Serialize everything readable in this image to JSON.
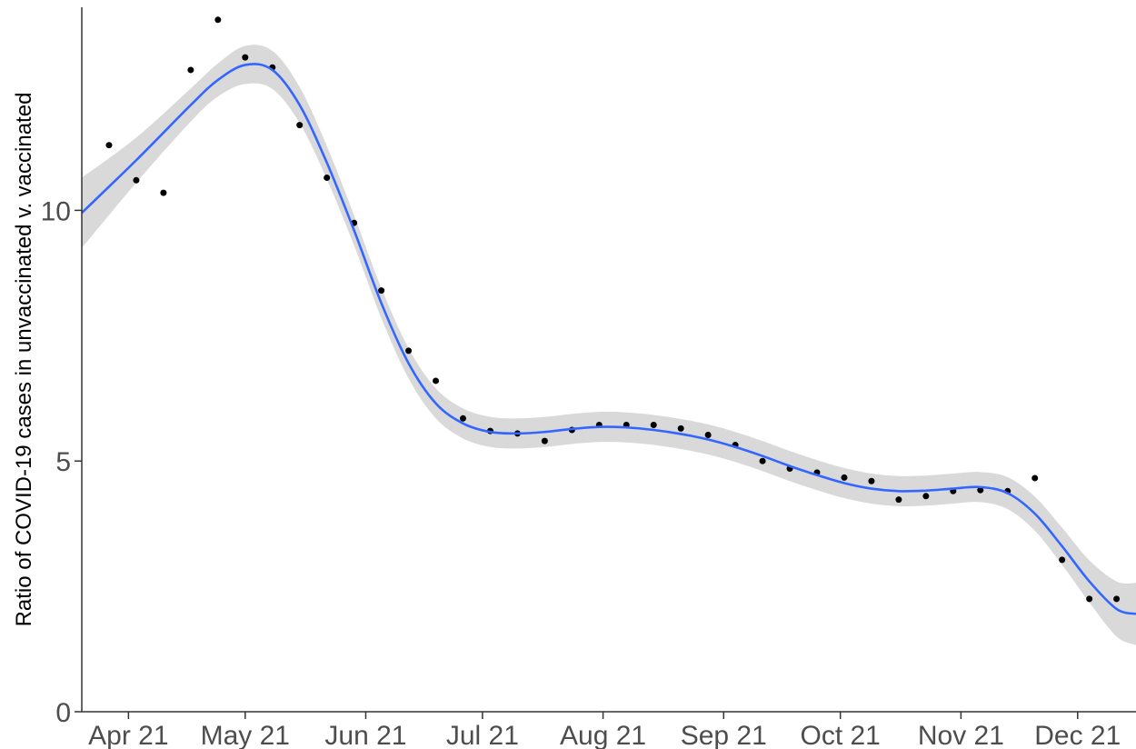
{
  "chart_data": {
    "type": "scatter",
    "title": "",
    "xlabel": "",
    "ylabel": "Ratio of COVID-19 cases in unvaccinated v. vaccinated",
    "x_ticks": [
      {
        "date": "2021-04-01",
        "label": "Apr 21"
      },
      {
        "date": "2021-05-01",
        "label": "May 21"
      },
      {
        "date": "2021-06-01",
        "label": "Jun 21"
      },
      {
        "date": "2021-07-01",
        "label": "Jul 21"
      },
      {
        "date": "2021-08-01",
        "label": "Aug 21"
      },
      {
        "date": "2021-09-01",
        "label": "Sep 21"
      },
      {
        "date": "2021-10-01",
        "label": "Oct 21"
      },
      {
        "date": "2021-11-01",
        "label": "Nov 21"
      },
      {
        "date": "2021-12-01",
        "label": "Dec 21"
      }
    ],
    "y_ticks": [
      0,
      5,
      10
    ],
    "xlim": [
      "2021-03-20",
      "2021-12-16"
    ],
    "ylim": [
      0,
      14.05
    ],
    "grid": false,
    "colors": {
      "points": "#000000",
      "smooth_line": "#3366FF",
      "confidence_band": "#D9D9D9",
      "axis": "#333333",
      "tick_labels": "#4d4d4d"
    },
    "points": [
      {
        "x": "2021-03-27",
        "y": 11.3
      },
      {
        "x": "2021-04-03",
        "y": 10.6
      },
      {
        "x": "2021-04-10",
        "y": 10.35
      },
      {
        "x": "2021-04-17",
        "y": 12.8
      },
      {
        "x": "2021-04-24",
        "y": 13.8
      },
      {
        "x": "2021-05-01",
        "y": 13.05
      },
      {
        "x": "2021-05-08",
        "y": 12.85
      },
      {
        "x": "2021-05-15",
        "y": 11.7
      },
      {
        "x": "2021-05-22",
        "y": 10.65
      },
      {
        "x": "2021-05-29",
        "y": 9.75
      },
      {
        "x": "2021-06-05",
        "y": 8.4
      },
      {
        "x": "2021-06-12",
        "y": 7.2
      },
      {
        "x": "2021-06-19",
        "y": 6.6
      },
      {
        "x": "2021-06-26",
        "y": 5.85
      },
      {
        "x": "2021-07-03",
        "y": 5.6
      },
      {
        "x": "2021-07-10",
        "y": 5.55
      },
      {
        "x": "2021-07-17",
        "y": 5.4
      },
      {
        "x": "2021-07-24",
        "y": 5.62
      },
      {
        "x": "2021-07-31",
        "y": 5.72
      },
      {
        "x": "2021-08-07",
        "y": 5.72
      },
      {
        "x": "2021-08-14",
        "y": 5.72
      },
      {
        "x": "2021-08-21",
        "y": 5.65
      },
      {
        "x": "2021-08-28",
        "y": 5.52
      },
      {
        "x": "2021-09-04",
        "y": 5.32
      },
      {
        "x": "2021-09-11",
        "y": 5.0
      },
      {
        "x": "2021-09-18",
        "y": 4.85
      },
      {
        "x": "2021-09-25",
        "y": 4.77
      },
      {
        "x": "2021-10-02",
        "y": 4.67
      },
      {
        "x": "2021-10-09",
        "y": 4.6
      },
      {
        "x": "2021-10-16",
        "y": 4.23
      },
      {
        "x": "2021-10-23",
        "y": 4.3
      },
      {
        "x": "2021-10-30",
        "y": 4.4
      },
      {
        "x": "2021-11-06",
        "y": 4.42
      },
      {
        "x": "2021-11-13",
        "y": 4.4
      },
      {
        "x": "2021-11-20",
        "y": 4.66
      },
      {
        "x": "2021-11-27",
        "y": 3.03
      },
      {
        "x": "2021-12-04",
        "y": 2.25
      },
      {
        "x": "2021-12-11",
        "y": 2.25
      }
    ],
    "smooth": {
      "method": "loess",
      "fit": [
        {
          "x": "2021-03-20",
          "y": 9.95
        },
        {
          "x": "2021-04-03",
          "y": 11.0
        },
        {
          "x": "2021-04-17",
          "y": 12.1
        },
        {
          "x": "2021-04-24",
          "y": 12.6
        },
        {
          "x": "2021-05-01",
          "y": 12.9
        },
        {
          "x": "2021-05-08",
          "y": 12.8
        },
        {
          "x": "2021-05-15",
          "y": 12.1
        },
        {
          "x": "2021-05-22",
          "y": 10.95
        },
        {
          "x": "2021-05-29",
          "y": 9.6
        },
        {
          "x": "2021-06-05",
          "y": 8.15
        },
        {
          "x": "2021-06-12",
          "y": 6.95
        },
        {
          "x": "2021-06-19",
          "y": 6.15
        },
        {
          "x": "2021-06-26",
          "y": 5.75
        },
        {
          "x": "2021-07-03",
          "y": 5.58
        },
        {
          "x": "2021-07-10",
          "y": 5.55
        },
        {
          "x": "2021-07-17",
          "y": 5.58
        },
        {
          "x": "2021-07-24",
          "y": 5.64
        },
        {
          "x": "2021-07-31",
          "y": 5.68
        },
        {
          "x": "2021-08-07",
          "y": 5.67
        },
        {
          "x": "2021-08-14",
          "y": 5.62
        },
        {
          "x": "2021-08-21",
          "y": 5.54
        },
        {
          "x": "2021-08-28",
          "y": 5.43
        },
        {
          "x": "2021-09-04",
          "y": 5.28
        },
        {
          "x": "2021-09-11",
          "y": 5.1
        },
        {
          "x": "2021-09-18",
          "y": 4.9
        },
        {
          "x": "2021-09-25",
          "y": 4.72
        },
        {
          "x": "2021-10-02",
          "y": 4.56
        },
        {
          "x": "2021-10-09",
          "y": 4.45
        },
        {
          "x": "2021-10-16",
          "y": 4.4
        },
        {
          "x": "2021-10-23",
          "y": 4.41
        },
        {
          "x": "2021-10-30",
          "y": 4.45
        },
        {
          "x": "2021-11-06",
          "y": 4.48
        },
        {
          "x": "2021-11-13",
          "y": 4.36
        },
        {
          "x": "2021-11-20",
          "y": 3.95
        },
        {
          "x": "2021-11-27",
          "y": 3.3
        },
        {
          "x": "2021-12-04",
          "y": 2.6
        },
        {
          "x": "2021-12-11",
          "y": 2.05
        },
        {
          "x": "2021-12-16",
          "y": 1.95
        }
      ],
      "band_halfwidth": [
        0.7,
        0.45,
        0.33,
        0.33,
        0.38,
        0.38,
        0.36,
        0.33,
        0.3,
        0.3,
        0.3,
        0.3,
        0.3,
        0.3,
        0.3,
        0.3,
        0.3,
        0.3,
        0.3,
        0.3,
        0.3,
        0.3,
        0.3,
        0.3,
        0.3,
        0.3,
        0.3,
        0.3,
        0.3,
        0.3,
        0.3,
        0.3,
        0.32,
        0.34,
        0.37,
        0.42,
        0.55,
        0.62
      ]
    }
  }
}
